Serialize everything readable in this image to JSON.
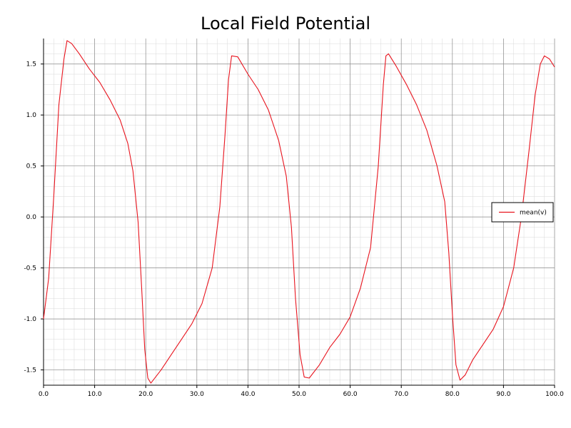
{
  "chart_data": {
    "type": "line",
    "title": "Local Field Potential",
    "xlabel": "",
    "ylabel": "",
    "xlim": [
      0,
      100
    ],
    "ylim": [
      -1.65,
      1.75
    ],
    "grid": true,
    "legend_position": "right",
    "colors": {
      "series": "#e8141e",
      "grid_major": "#8c8c8c",
      "grid_minor": "#d8d8d8"
    },
    "x_ticks": [
      0,
      10,
      20,
      30,
      40,
      50,
      60,
      70,
      80,
      90,
      100
    ],
    "x_tick_labels": [
      "0.0",
      "10.0",
      "20.0",
      "30.0",
      "40.0",
      "50.0",
      "60.0",
      "70.0",
      "80.0",
      "90.0",
      "100.0"
    ],
    "y_ticks": [
      -1.5,
      -1.0,
      -0.5,
      0.0,
      0.5,
      1.0,
      1.5
    ],
    "y_tick_labels": [
      "-1.5",
      "-1.0",
      "-0.5",
      "0.0",
      "0.5",
      "1.0",
      "1.5"
    ],
    "series": [
      {
        "name": "mean(v)",
        "x": [
          0,
          1,
          2,
          3,
          4,
          4.6,
          5.5,
          7,
          9,
          11,
          13,
          15,
          16.5,
          17.5,
          18.5,
          19.2,
          19.8,
          20.4,
          21,
          23,
          25,
          27,
          29,
          31,
          33,
          34.5,
          35.5,
          36.2,
          36.8,
          38,
          40,
          42,
          44,
          46,
          47.5,
          48.5,
          49.3,
          50.2,
          51,
          52,
          54,
          56,
          58,
          60,
          62,
          64,
          65.5,
          66.5,
          67,
          67.5,
          69,
          71,
          73,
          75,
          77,
          78.5,
          79.3,
          80,
          80.7,
          81.5,
          82.5,
          84,
          86,
          88,
          90,
          92,
          93.5,
          95,
          96.2,
          97.2,
          98,
          99,
          100
        ],
        "y": [
          -1.0,
          -0.6,
          0.2,
          1.1,
          1.55,
          1.73,
          1.7,
          1.6,
          1.45,
          1.32,
          1.15,
          0.95,
          0.72,
          0.45,
          -0.05,
          -0.7,
          -1.3,
          -1.58,
          -1.63,
          -1.5,
          -1.35,
          -1.2,
          -1.05,
          -0.85,
          -0.5,
          0.1,
          0.8,
          1.35,
          1.58,
          1.57,
          1.4,
          1.25,
          1.05,
          0.75,
          0.4,
          -0.1,
          -0.8,
          -1.35,
          -1.57,
          -1.58,
          -1.45,
          -1.28,
          -1.15,
          -0.98,
          -0.7,
          -0.3,
          0.5,
          1.3,
          1.58,
          1.6,
          1.48,
          1.3,
          1.1,
          0.85,
          0.5,
          0.15,
          -0.35,
          -0.95,
          -1.45,
          -1.6,
          -1.55,
          -1.4,
          -1.25,
          -1.1,
          -0.88,
          -0.5,
          0.0,
          0.65,
          1.2,
          1.5,
          1.58,
          1.55,
          1.47
        ]
      }
    ]
  }
}
